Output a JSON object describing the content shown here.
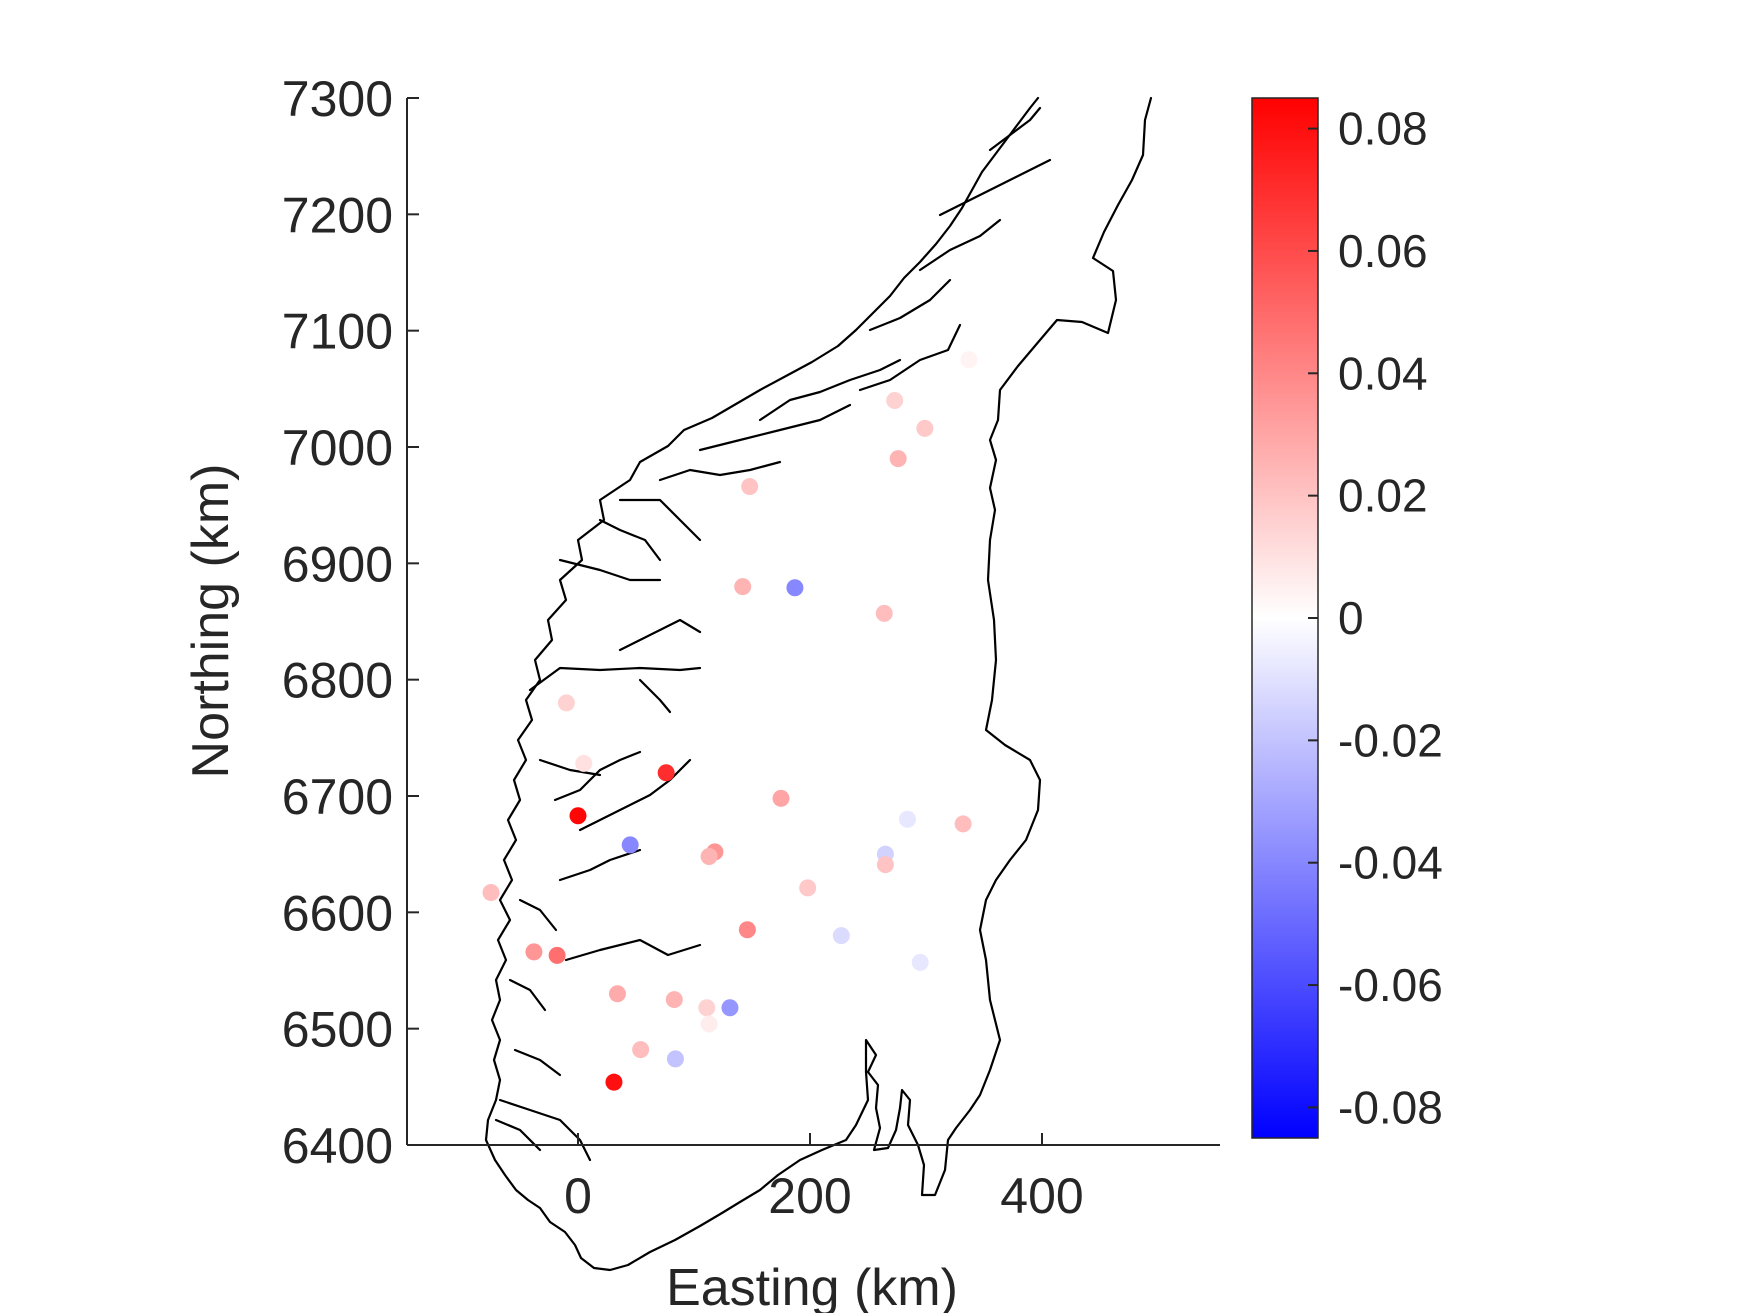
{
  "chart_data": {
    "type": "scatter",
    "title": "",
    "xlabel": "Easting (km)",
    "ylabel": "Northing (km)",
    "xlim": [
      -150,
      550
    ],
    "ylim": [
      6400,
      7300
    ],
    "xticks": [
      0,
      200,
      400
    ],
    "yticks": [
      6400,
      6500,
      6600,
      6700,
      6800,
      6900,
      7000,
      7100,
      7200,
      7300
    ],
    "grid": false,
    "colorbar": {
      "limits": [
        -0.085,
        0.085
      ],
      "ticks": [
        -0.08,
        -0.06,
        -0.04,
        -0.02,
        0,
        0.02,
        0.04,
        0.06,
        0.08
      ],
      "colormap": "blue-white-red",
      "low_color": "#0000ff",
      "mid_color": "#ffffff",
      "high_color": "#ff0000"
    },
    "points": [
      {
        "x": 0,
        "y": 6683,
        "v": 0.083
      },
      {
        "x": 31,
        "y": 6454,
        "v": 0.08
      },
      {
        "x": 76,
        "y": 6720,
        "v": 0.07
      },
      {
        "x": 45,
        "y": 6658,
        "v": -0.04
      },
      {
        "x": 187,
        "y": 6879,
        "v": -0.04
      },
      {
        "x": 131,
        "y": 6518,
        "v": -0.035
      },
      {
        "x": 84,
        "y": 6474,
        "v": -0.02
      },
      {
        "x": 227,
        "y": 6580,
        "v": -0.012
      },
      {
        "x": 265,
        "y": 6650,
        "v": -0.015
      },
      {
        "x": 284,
        "y": 6680,
        "v": -0.008
      },
      {
        "x": 295,
        "y": 6557,
        "v": -0.008
      },
      {
        "x": -18,
        "y": 6563,
        "v": 0.048
      },
      {
        "x": -38,
        "y": 6566,
        "v": 0.035
      },
      {
        "x": 146,
        "y": 6585,
        "v": 0.04
      },
      {
        "x": 118,
        "y": 6652,
        "v": 0.035
      },
      {
        "x": 113,
        "y": 6648,
        "v": 0.025
      },
      {
        "x": 175,
        "y": 6698,
        "v": 0.03
      },
      {
        "x": 34,
        "y": 6530,
        "v": 0.028
      },
      {
        "x": 83,
        "y": 6525,
        "v": 0.025
      },
      {
        "x": 54,
        "y": 6482,
        "v": 0.022
      },
      {
        "x": 111,
        "y": 6518,
        "v": 0.015
      },
      {
        "x": 113,
        "y": 6504,
        "v": 0.006
      },
      {
        "x": 198,
        "y": 6621,
        "v": 0.018
      },
      {
        "x": 332,
        "y": 6676,
        "v": 0.022
      },
      {
        "x": 142,
        "y": 6880,
        "v": 0.025
      },
      {
        "x": 264,
        "y": 6857,
        "v": 0.022
      },
      {
        "x": 276,
        "y": 6990,
        "v": 0.025
      },
      {
        "x": 299,
        "y": 7016,
        "v": 0.018
      },
      {
        "x": 148,
        "y": 6966,
        "v": 0.02
      },
      {
        "x": 273,
        "y": 7040,
        "v": 0.015
      },
      {
        "x": 337,
        "y": 7075,
        "v": 0.004
      },
      {
        "x": -10,
        "y": 6780,
        "v": 0.015
      },
      {
        "x": 5,
        "y": 6728,
        "v": 0.01
      },
      {
        "x": -75,
        "y": 6617,
        "v": 0.022
      },
      {
        "x": 265,
        "y": 6641,
        "v": 0.02
      }
    ]
  }
}
